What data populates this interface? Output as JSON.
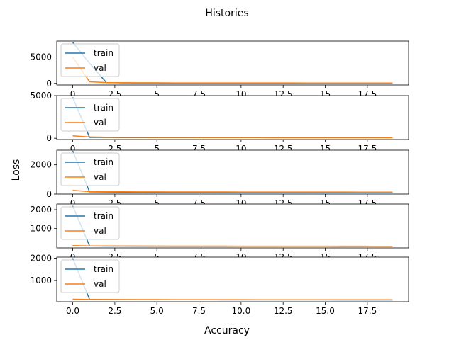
{
  "figure": {
    "title": "Histories",
    "ylabel": "Loss",
    "xlabel": "Accuracy",
    "colors": {
      "train": "#1f77b4",
      "val": "#ff7f0e"
    },
    "legend_placement": "upper left"
  },
  "chart_data": [
    {
      "type": "line",
      "x": [
        0,
        1,
        2,
        3,
        4,
        5,
        6,
        7,
        8,
        9,
        10,
        11,
        12,
        13,
        14,
        15,
        16,
        17,
        18,
        19
      ],
      "xlim": [
        -0.95,
        19.95
      ],
      "ylim": [
        -300,
        8000
      ],
      "yticks": [
        0,
        5000
      ],
      "xticks": [
        0.0,
        2.5,
        5.0,
        7.5,
        10.0,
        12.5,
        15.0,
        17.5
      ],
      "legend": [
        "train",
        "val"
      ],
      "series": [
        {
          "name": "train",
          "values": [
            7800,
            3800,
            150,
            100,
            90,
            85,
            80,
            80,
            78,
            76,
            75,
            74,
            73,
            72,
            71,
            70,
            70,
            69,
            68,
            67
          ]
        },
        {
          "name": "val",
          "values": [
            5000,
            300,
            150,
            110,
            100,
            95,
            92,
            90,
            88,
            86,
            85,
            84,
            83,
            82,
            81,
            80,
            80,
            79,
            78,
            77
          ]
        }
      ]
    },
    {
      "type": "line",
      "x": [
        0,
        1,
        2,
        3,
        4,
        5,
        6,
        7,
        8,
        9,
        10,
        11,
        12,
        13,
        14,
        15,
        16,
        17,
        18,
        19
      ],
      "xlim": [
        -0.95,
        19.95
      ],
      "ylim": [
        -150,
        5000
      ],
      "yticks": [
        0,
        5000
      ],
      "xticks": [
        0.0,
        2.5,
        5.0,
        7.5,
        10.0,
        12.5,
        15.0,
        17.5
      ],
      "legend": [
        "train",
        "val"
      ],
      "series": [
        {
          "name": "train",
          "values": [
            4800,
            100,
            90,
            85,
            80,
            78,
            76,
            75,
            74,
            73,
            72,
            71,
            70,
            70,
            69,
            68,
            68,
            67,
            66,
            65
          ]
        },
        {
          "name": "val",
          "values": [
            280,
            150,
            120,
            110,
            105,
            100,
            98,
            96,
            95,
            94,
            93,
            92,
            91,
            90,
            90,
            89,
            88,
            88,
            87,
            86
          ]
        }
      ]
    },
    {
      "type": "line",
      "x": [
        0,
        1,
        2,
        3,
        4,
        5,
        6,
        7,
        8,
        9,
        10,
        11,
        12,
        13,
        14,
        15,
        16,
        17,
        18,
        19
      ],
      "xlim": [
        -0.95,
        19.95
      ],
      "ylim": [
        0,
        3000
      ],
      "yticks": [
        0,
        2000
      ],
      "xticks": [
        0.0,
        2.5,
        5.0,
        7.5,
        10.0,
        12.5,
        15.0,
        17.5
      ],
      "legend": [
        "train",
        "val"
      ],
      "series": [
        {
          "name": "train",
          "values": [
            2950,
            150,
            140,
            135,
            130,
            128,
            126,
            125,
            124,
            123,
            122,
            121,
            120,
            120,
            119,
            118,
            118,
            117,
            116,
            115
          ]
        },
        {
          "name": "val",
          "values": [
            250,
            170,
            160,
            155,
            150,
            148,
            146,
            145,
            144,
            143,
            142,
            141,
            140,
            140,
            139,
            138,
            138,
            137,
            136,
            135
          ]
        }
      ]
    },
    {
      "type": "line",
      "x": [
        0,
        1,
        2,
        3,
        4,
        5,
        6,
        7,
        8,
        9,
        10,
        11,
        12,
        13,
        14,
        15,
        16,
        17,
        18,
        19
      ],
      "xlim": [
        -0.95,
        19.95
      ],
      "ylim": [
        -20,
        2300
      ],
      "yticks": [
        1000,
        2000
      ],
      "xticks": [
        0.0,
        2.5,
        5.0,
        7.5,
        10.0,
        12.5,
        15.0,
        17.5
      ],
      "legend": [
        "train",
        "val"
      ],
      "series": [
        {
          "name": "train",
          "values": [
            2200,
            80,
            75,
            72,
            70,
            68,
            67,
            66,
            65,
            64,
            63,
            63,
            62,
            62,
            61,
            61,
            60,
            60,
            59,
            59
          ]
        },
        {
          "name": "val",
          "values": [
            100,
            85,
            80,
            78,
            76,
            75,
            74,
            73,
            72,
            72,
            71,
            71,
            70,
            70,
            69,
            69,
            68,
            68,
            67,
            67
          ]
        }
      ]
    },
    {
      "type": "line",
      "x": [
        0,
        1,
        2,
        3,
        4,
        5,
        6,
        7,
        8,
        9,
        10,
        11,
        12,
        13,
        14,
        15,
        16,
        17,
        18,
        19
      ],
      "xlim": [
        -0.95,
        19.95
      ],
      "ylim": [
        50,
        2050
      ],
      "yticks": [
        1000,
        2000
      ],
      "xticks": [
        0.0,
        2.5,
        5.0,
        7.5,
        10.0,
        12.5,
        15.0,
        17.5
      ],
      "xticklabels": [
        "0.0",
        "2.5",
        "5.0",
        "7.5",
        "10.0",
        "12.5",
        "15.0",
        "17.5"
      ],
      "legend": [
        "train",
        "val"
      ],
      "series": [
        {
          "name": "train",
          "values": [
            2000,
            150,
            145,
            142,
            140,
            138,
            137,
            136,
            135,
            134,
            133,
            133,
            132,
            132,
            131,
            131,
            130,
            130,
            129,
            129
          ]
        },
        {
          "name": "val",
          "values": [
            160,
            150,
            148,
            146,
            145,
            144,
            143,
            142,
            142,
            141,
            141,
            140,
            140,
            140,
            139,
            139,
            139,
            138,
            138,
            138
          ]
        }
      ]
    }
  ]
}
